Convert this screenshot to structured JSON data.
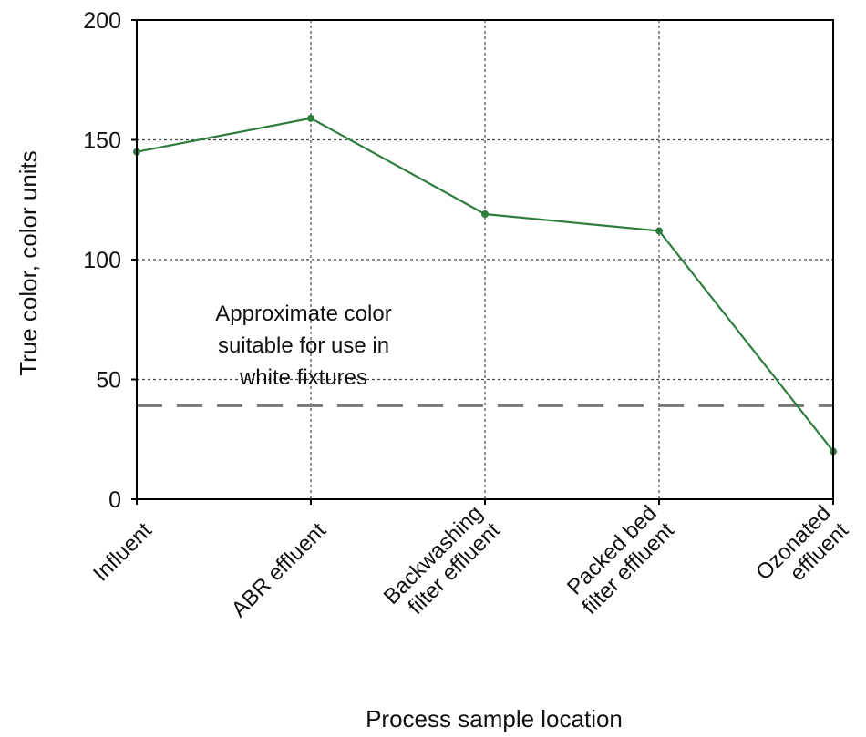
{
  "chart_data": {
    "type": "line",
    "categories": [
      [
        "Influent"
      ],
      [
        "ABR effluent"
      ],
      [
        "Backwashing",
        "filter effluent"
      ],
      [
        "Packed bed",
        "filter effluent"
      ],
      [
        "Ozonated",
        "effluent"
      ]
    ],
    "series": [
      {
        "values": [
          145,
          159,
          119,
          112,
          20
        ],
        "color": "#2e7d3e"
      }
    ],
    "xlabel": "Process sample location",
    "ylabel": "True color, color units",
    "ylim": [
      0,
      200
    ],
    "yticks": [
      0,
      50,
      100,
      150,
      200
    ],
    "grid": true,
    "reference_line": {
      "value": 39,
      "style": "dashed",
      "color": "#777777",
      "label": [
        "Approximate color",
        "suitable for use in",
        "white fixtures"
      ]
    }
  }
}
